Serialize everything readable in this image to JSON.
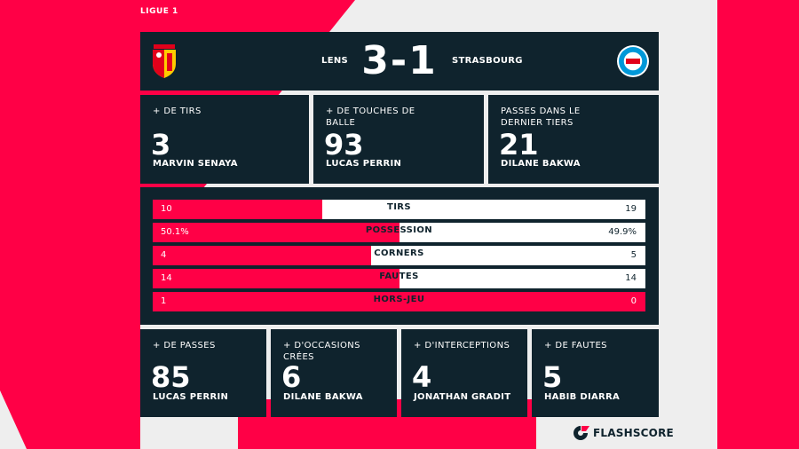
{
  "competition": "LIGUE 1",
  "colors": {
    "accent": "#ff0046",
    "panel": "#0f232d",
    "bar_track": "#ffffff",
    "background": "#eeeeee"
  },
  "match": {
    "home_team": "LENS",
    "away_team": "STRASBOURG",
    "score": "3-1",
    "home_crest_icon": "rc-lens-crest-icon",
    "away_crest_icon": "rc-strasbourg-crest-icon"
  },
  "top_cards": [
    {
      "label": "+ DE TIRS",
      "value": "3",
      "player": "MARVIN SENAYA"
    },
    {
      "label": "+ DE TOUCHES DE BALLE",
      "value": "93",
      "player": "LUCAS PERRIN"
    },
    {
      "label": "PASSES DANS LE DERNIER TIERS",
      "value": "21",
      "player": "DILANE BAKWA"
    }
  ],
  "team_stats": [
    {
      "label": "TIRS",
      "home": "10",
      "away": "19",
      "home_share": 0.345
    },
    {
      "label": "POSSESSION",
      "home": "50.1%",
      "away": "49.9%",
      "home_share": 0.501
    },
    {
      "label": "CORNERS",
      "home": "4",
      "away": "5",
      "home_share": 0.444
    },
    {
      "label": "FAUTES",
      "home": "14",
      "away": "14",
      "home_share": 0.5
    },
    {
      "label": "HORS-JEU",
      "home": "1",
      "away": "0",
      "home_share": 1.0
    }
  ],
  "bottom_cards": [
    {
      "label": "+ DE PASSES",
      "value": "85",
      "player": "LUCAS PERRIN"
    },
    {
      "label": "+ D'OCCASIONS CRÉES",
      "value": "6",
      "player": "DILANE BAKWA"
    },
    {
      "label": "+ D'INTERCEPTIONS",
      "value": "4",
      "player": "JONATHAN GRADIT"
    },
    {
      "label": "+ DE FAUTES",
      "value": "5",
      "player": "HABIB DIARRA"
    }
  ],
  "brand": {
    "name": "FLASHSCORE",
    "icon": "flashscore-logo-icon"
  }
}
